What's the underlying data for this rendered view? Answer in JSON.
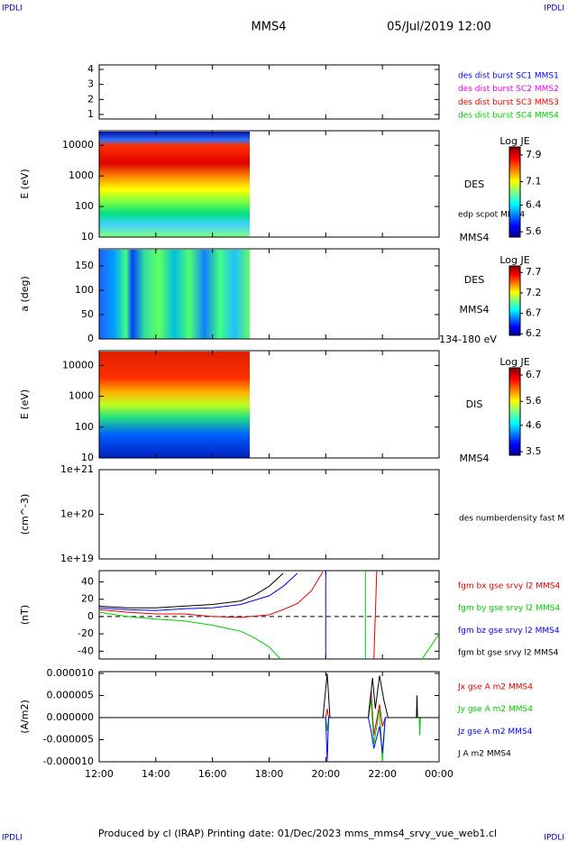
{
  "header": {
    "left": "IPDLI",
    "right": "IPDLI",
    "title": "MMS4",
    "date": "05/Jul/2019 12:00"
  },
  "footer": {
    "text": "Produced by cl (IRAP)   Printing date: 01/Dec/2023   mms_mms4_srvy_vue_web1.cl",
    "left": "IPDLI",
    "right": "IPDLI"
  },
  "time_axis": {
    "xlim": [
      12,
      24
    ],
    "xticks": [
      {
        "value": 12,
        "label": "12:00"
      },
      {
        "value": 14,
        "label": "14:00"
      },
      {
        "value": 16,
        "label": "16:00"
      },
      {
        "value": 18,
        "label": "18:00"
      },
      {
        "value": 20,
        "label": "20:00"
      },
      {
        "value": 22,
        "label": "22:00"
      },
      {
        "value": 24,
        "label": "00:00"
      }
    ]
  },
  "chart_data": [
    {
      "type": "line",
      "ylim": [
        0.7,
        4.3
      ],
      "yticks": [
        1,
        2,
        3,
        4
      ],
      "legend": [
        {
          "name": "des dist burst SC1 MMS1",
          "color": "#0000ff"
        },
        {
          "name": "des dist burst SC2 MMS2",
          "color": "#ff00ff"
        },
        {
          "name": "des dist burst SC3 MMS3",
          "color": "#ff0000"
        },
        {
          "name": "des dist burst SC4 MMS4",
          "color": "#00cc00"
        }
      ]
    },
    {
      "type": "spectrogram",
      "ylabel": "E (eV)",
      "log": true,
      "ylim": [
        10,
        30000
      ],
      "yticks": [
        10,
        100,
        1000,
        10000
      ],
      "annotations": [
        "DES",
        "edp scpot MMS4",
        "MMS4"
      ],
      "colorbar": {
        "label": "Log JE",
        "clim": [
          5.44,
          8.14
        ],
        "ticks": [
          7.9,
          7.1,
          6.4,
          5.6
        ]
      }
    },
    {
      "type": "spectrogram",
      "ylabel": "a (deg)",
      "log": false,
      "ylim": [
        0,
        185
      ],
      "yticks": [
        0,
        50,
        100,
        150
      ],
      "annotations": [
        "DES",
        "MMS4",
        "134-180 eV"
      ],
      "colorbar": {
        "label": "Log JE",
        "clim": [
          6.16,
          7.86
        ],
        "ticks": [
          7.7,
          7.2,
          6.7,
          6.2
        ]
      }
    },
    {
      "type": "spectrogram",
      "ylabel": "E (eV)",
      "log": true,
      "ylim": [
        10,
        30000
      ],
      "yticks": [
        10,
        100,
        1000,
        10000
      ],
      "annotations": [
        "DIS",
        "MMS4"
      ],
      "colorbar": {
        "label": "Log JE",
        "clim": [
          3.35,
          7.0
        ],
        "ticks": [
          6.7,
          5.6,
          4.6,
          3.5
        ]
      }
    },
    {
      "type": "line",
      "ylabel": "(cm^-3)",
      "log": true,
      "ylim": [
        1e+19,
        1e+21
      ],
      "yticks": [
        {
          "value": 1e+19,
          "label": "1e+19"
        },
        {
          "value": 1e+20,
          "label": "1e+20"
        },
        {
          "value": 1e+21,
          "label": "1e+21"
        }
      ],
      "annotations": [
        "des numberdensity fast M"
      ]
    },
    {
      "type": "line",
      "ylabel": "(nT)",
      "log": false,
      "ylim": [
        -49,
        53
      ],
      "yticks": [
        -40,
        -20,
        0,
        20,
        40
      ],
      "zero_line": true,
      "series": [
        {
          "name": "fgm bx gse srvy l2 MMS4",
          "color": "#dd0000",
          "x": [
            12,
            13,
            14,
            15,
            16,
            17,
            18,
            18.5,
            19,
            19.5,
            19.9,
            null,
            21.7,
            21.8
          ],
          "values": [
            8,
            5,
            3,
            3,
            0,
            -1,
            2,
            8,
            15,
            30,
            52,
            null,
            -49,
            53
          ]
        },
        {
          "name": "fgm by gse srvy l2 MMS4",
          "color": "#00cc00",
          "x": [
            12,
            13,
            14,
            15,
            16,
            17,
            17.5,
            18,
            18.4,
            null,
            21.4,
            21.4,
            null,
            23.4,
            23.8,
            24
          ],
          "values": [
            5,
            0,
            -3,
            -5,
            -10,
            -17,
            -25,
            -35,
            -49,
            null,
            -49,
            53,
            null,
            -49,
            -30,
            -20
          ]
        },
        {
          "name": "fgm bz gse srvy l2 MMS4",
          "color": "#0000ff",
          "x": [
            12,
            13,
            14,
            15,
            16,
            17,
            18,
            18.5,
            19,
            null,
            20,
            20
          ],
          "values": [
            10,
            8,
            7,
            9,
            10,
            14,
            24,
            35,
            50,
            null,
            -49,
            53
          ]
        },
        {
          "name": "fgm bt gse srvy l2 MMS4",
          "color": "#000000",
          "x": [
            12,
            13,
            14,
            15,
            16,
            17,
            17.5,
            18,
            18.5
          ],
          "values": [
            12,
            10,
            10,
            12,
            14,
            18,
            25,
            35,
            50
          ]
        }
      ]
    },
    {
      "type": "line",
      "ylabel": "(A/m2)",
      "log": false,
      "ylim": [
        -1e-05,
        1.04e-05
      ],
      "yticks": [
        {
          "value": -1e-05,
          "label": "-0.000010"
        },
        {
          "value": -5e-06,
          "label": "-0.000005"
        },
        {
          "value": 0,
          "label": "0.000000"
        },
        {
          "value": 5e-06,
          "label": "0.000005"
        },
        {
          "value": 1e-05,
          "label": "0.000010"
        }
      ],
      "series": [
        {
          "name": "Jx gse A m2 MMS4",
          "color": "#dd0000",
          "x": [
            12,
            20,
            20.05,
            20.1,
            21.5,
            21.6,
            21.7,
            21.9,
            22,
            22.1,
            24
          ],
          "values": [
            0,
            0,
            2e-06,
            0,
            0,
            6e-06,
            -4e-06,
            3e-06,
            -2e-06,
            0,
            0
          ]
        },
        {
          "name": "Jy gse A m2 MMS4",
          "color": "#00cc00",
          "x": [
            12,
            20,
            20.05,
            20.1,
            21.5,
            21.6,
            21.7,
            21.9,
            22,
            22.1,
            23.3,
            23.32,
            23.34,
            24
          ],
          "values": [
            0,
            0,
            -3e-06,
            0,
            0,
            4e-06,
            -6e-06,
            2e-06,
            -1e-05,
            0,
            0,
            -4e-06,
            0,
            0
          ]
        },
        {
          "name": "Jz gse A m2 MMS4",
          "color": "#0000ff",
          "x": [
            12,
            20,
            20.05,
            20.1,
            21.5,
            21.6,
            21.7,
            21.9,
            22,
            22.1,
            24
          ],
          "values": [
            0,
            0,
            -1e-05,
            0,
            0,
            -3e-06,
            -7e-06,
            -2e-06,
            -8e-06,
            0,
            0
          ]
        },
        {
          "name": "J A m2 MMS4",
          "color": "#000000",
          "x": [
            12,
            19.9,
            20.05,
            20.15,
            21.5,
            21.65,
            21.75,
            21.9,
            22.05,
            22.2,
            23.2,
            23.22,
            23.24,
            24
          ],
          "values": [
            0,
            0,
            1e-05,
            0,
            0,
            9e-06,
            2e-06,
            9.5e-06,
            4e-06,
            0,
            0,
            5e-06,
            0,
            0
          ]
        }
      ]
    }
  ]
}
